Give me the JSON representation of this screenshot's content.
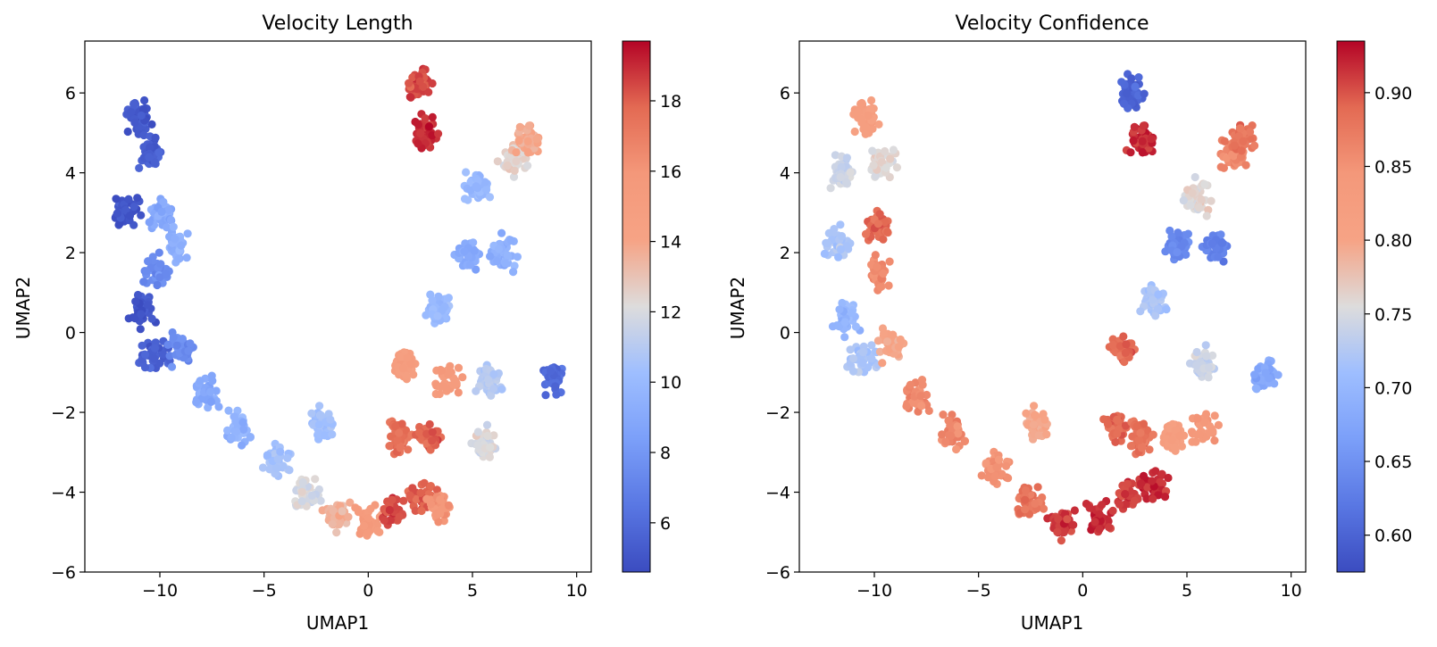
{
  "chart_data": [
    {
      "type": "scatter",
      "title": "Velocity Length",
      "xlabel": "UMAP1",
      "ylabel": "UMAP2",
      "xlim": [
        -13.6,
        10.7
      ],
      "ylim": [
        -6,
        7.3
      ],
      "xticks": [
        -10,
        -5,
        0,
        5,
        10
      ],
      "xtick_labels": [
        "−10",
        "−5",
        "0",
        "5",
        "10"
      ],
      "yticks": [
        -6,
        -4,
        -2,
        0,
        2,
        4,
        6
      ],
      "ytick_labels": [
        "−6",
        "−4",
        "−2",
        "0",
        "2",
        "4",
        "6"
      ],
      "colormap": "coolwarm",
      "color_range": [
        4.6,
        19.7
      ],
      "colorbar_ticks": [
        6,
        8,
        10,
        12,
        14,
        16,
        18
      ],
      "colorbar_tick_labels": [
        "6",
        "8",
        "10",
        "12",
        "14",
        "16",
        "18"
      ],
      "grid": false,
      "clusters": [
        {
          "x": -11.0,
          "y": 5.4,
          "value": 5.2
        },
        {
          "x": -10.4,
          "y": 4.5,
          "value": 5.3
        },
        {
          "x": -11.6,
          "y": 3.0,
          "value": 5.0
        },
        {
          "x": -9.9,
          "y": 3.0,
          "value": 9.0
        },
        {
          "x": -9.2,
          "y": 2.2,
          "value": 9.5
        },
        {
          "x": -10.2,
          "y": 1.5,
          "value": 7.5
        },
        {
          "x": -10.9,
          "y": 0.5,
          "value": 5.0
        },
        {
          "x": -10.3,
          "y": -0.6,
          "value": 5.5
        },
        {
          "x": -9.0,
          "y": -0.4,
          "value": 7.5
        },
        {
          "x": -7.8,
          "y": -1.5,
          "value": 9.0
        },
        {
          "x": -6.2,
          "y": -2.4,
          "value": 9.5
        },
        {
          "x": -4.4,
          "y": -3.2,
          "value": 10.5
        },
        {
          "x": -3.0,
          "y": -4.0,
          "value": 12.0
        },
        {
          "x": -2.2,
          "y": -2.3,
          "value": 10.5
        },
        {
          "x": -1.5,
          "y": -4.6,
          "value": 13.5
        },
        {
          "x": 0.0,
          "y": -4.8,
          "value": 15.5
        },
        {
          "x": 1.2,
          "y": -4.6,
          "value": 18.5
        },
        {
          "x": 2.6,
          "y": -4.1,
          "value": 18.0
        },
        {
          "x": 3.4,
          "y": -4.4,
          "value": 16.0
        },
        {
          "x": 1.5,
          "y": -2.6,
          "value": 17.5
        },
        {
          "x": 2.8,
          "y": -2.6,
          "value": 18.0
        },
        {
          "x": 1.8,
          "y": -0.8,
          "value": 15.0
        },
        {
          "x": 3.8,
          "y": -1.2,
          "value": 15.5
        },
        {
          "x": 5.6,
          "y": -2.8,
          "value": 12.0
        },
        {
          "x": 5.8,
          "y": -1.2,
          "value": 11.0
        },
        {
          "x": 3.4,
          "y": 0.6,
          "value": 10.0
        },
        {
          "x": 4.8,
          "y": 2.0,
          "value": 9.0
        },
        {
          "x": 6.4,
          "y": 2.0,
          "value": 9.5
        },
        {
          "x": 5.2,
          "y": 3.6,
          "value": 10.0
        },
        {
          "x": 7.0,
          "y": 4.3,
          "value": 12.5
        },
        {
          "x": 7.6,
          "y": 4.8,
          "value": 14.0
        },
        {
          "x": 2.8,
          "y": 5.0,
          "value": 19.0
        },
        {
          "x": 2.5,
          "y": 6.2,
          "value": 18.5
        },
        {
          "x": 8.8,
          "y": -1.1,
          "value": 6.0
        }
      ]
    },
    {
      "type": "scatter",
      "title": "Velocity Confidence",
      "xlabel": "UMAP1",
      "ylabel": "UMAP2",
      "xlim": [
        -13.6,
        10.7
      ],
      "ylim": [
        -6,
        7.3
      ],
      "xticks": [
        -10,
        -5,
        0,
        5,
        10
      ],
      "xtick_labels": [
        "−10",
        "−5",
        "0",
        "5",
        "10"
      ],
      "yticks": [
        -6,
        -4,
        -2,
        0,
        2,
        4,
        6
      ],
      "ytick_labels": [
        "−6",
        "−4",
        "−2",
        "0",
        "2",
        "4",
        "6"
      ],
      "colormap": "coolwarm",
      "color_range": [
        0.575,
        0.935
      ],
      "colorbar_ticks": [
        0.6,
        0.65,
        0.7,
        0.75,
        0.8,
        0.85,
        0.9
      ],
      "colorbar_tick_labels": [
        "0.60",
        "0.65",
        "0.70",
        "0.75",
        "0.80",
        "0.85",
        "0.90"
      ],
      "grid": false,
      "clusters": [
        {
          "x": -10.4,
          "y": 5.4,
          "value": 0.82
        },
        {
          "x": -11.5,
          "y": 4.0,
          "value": 0.74
        },
        {
          "x": -9.6,
          "y": 4.2,
          "value": 0.76
        },
        {
          "x": -9.8,
          "y": 2.7,
          "value": 0.89
        },
        {
          "x": -9.8,
          "y": 1.5,
          "value": 0.86
        },
        {
          "x": -11.8,
          "y": 2.2,
          "value": 0.72
        },
        {
          "x": -11.4,
          "y": 0.3,
          "value": 0.7
        },
        {
          "x": -10.6,
          "y": -0.7,
          "value": 0.72
        },
        {
          "x": -9.2,
          "y": -0.3,
          "value": 0.8
        },
        {
          "x": -8.0,
          "y": -1.6,
          "value": 0.86
        },
        {
          "x": -6.2,
          "y": -2.5,
          "value": 0.86
        },
        {
          "x": -4.2,
          "y": -3.4,
          "value": 0.85
        },
        {
          "x": -2.6,
          "y": -4.2,
          "value": 0.88
        },
        {
          "x": -2.2,
          "y": -2.3,
          "value": 0.8
        },
        {
          "x": -1.0,
          "y": -4.8,
          "value": 0.91
        },
        {
          "x": 0.8,
          "y": -4.7,
          "value": 0.92
        },
        {
          "x": 2.2,
          "y": -4.2,
          "value": 0.91
        },
        {
          "x": 3.4,
          "y": -3.8,
          "value": 0.92
        },
        {
          "x": 1.6,
          "y": -2.4,
          "value": 0.89
        },
        {
          "x": 2.8,
          "y": -2.6,
          "value": 0.88
        },
        {
          "x": 1.8,
          "y": -0.4,
          "value": 0.89
        },
        {
          "x": 4.4,
          "y": -2.6,
          "value": 0.82
        },
        {
          "x": 5.8,
          "y": -2.4,
          "value": 0.84
        },
        {
          "x": 5.8,
          "y": -0.8,
          "value": 0.74
        },
        {
          "x": 3.4,
          "y": 0.8,
          "value": 0.72
        },
        {
          "x": 4.6,
          "y": 2.2,
          "value": 0.64
        },
        {
          "x": 6.4,
          "y": 2.2,
          "value": 0.63
        },
        {
          "x": 5.4,
          "y": 3.4,
          "value": 0.76
        },
        {
          "x": 7.2,
          "y": 4.4,
          "value": 0.86
        },
        {
          "x": 7.6,
          "y": 4.8,
          "value": 0.88
        },
        {
          "x": 2.8,
          "y": 4.8,
          "value": 0.92
        },
        {
          "x": 2.4,
          "y": 6.0,
          "value": 0.6
        },
        {
          "x": 8.8,
          "y": -1.1,
          "value": 0.68
        }
      ]
    }
  ]
}
